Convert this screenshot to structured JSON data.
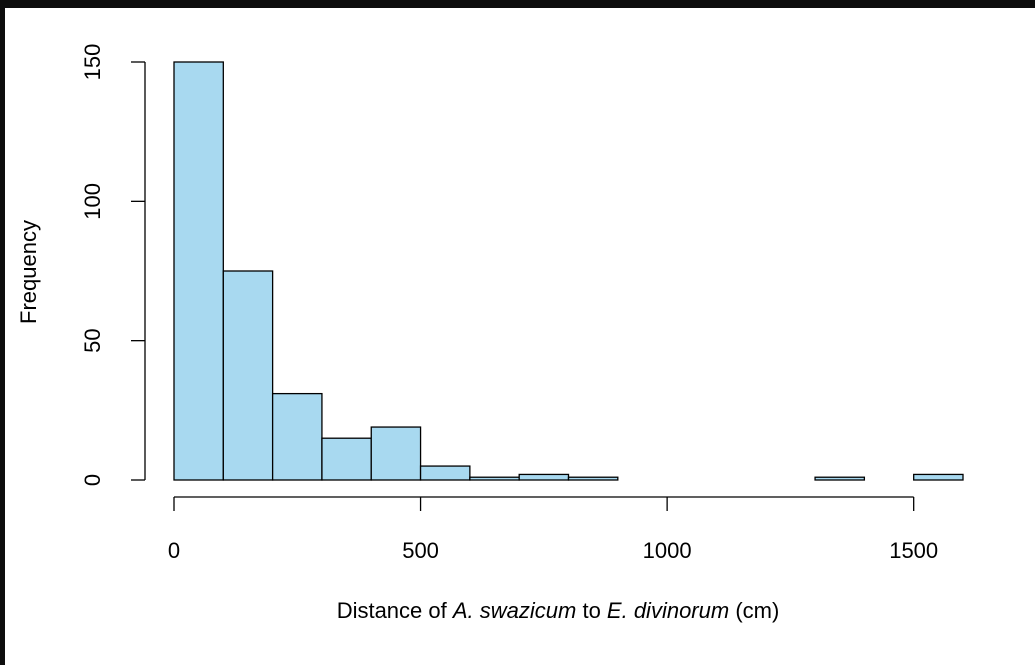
{
  "chart_data": {
    "type": "histogram",
    "xlabel_parts": [
      {
        "text": "Distance of ",
        "italic": false
      },
      {
        "text": "A. swazicum",
        "italic": true
      },
      {
        "text": " to ",
        "italic": false
      },
      {
        "text": "E. divinorum",
        "italic": true
      },
      {
        "text": " (cm)",
        "italic": false
      }
    ],
    "ylabel": "Frequency",
    "bins": [
      0,
      100,
      200,
      300,
      400,
      500,
      600,
      700,
      800,
      900,
      1000,
      1100,
      1200,
      1300,
      1400,
      1500,
      1600
    ],
    "values": [
      150,
      75,
      31,
      15,
      19,
      5,
      1,
      2,
      1,
      0,
      0,
      0,
      0,
      1,
      0,
      2
    ],
    "color": "#a8d9f0",
    "xlim": [
      0,
      1600
    ],
    "xticks": [
      0,
      500,
      1000,
      1500
    ],
    "ylim": [
      0,
      150
    ],
    "yticks": [
      0,
      50,
      100,
      150
    ]
  }
}
